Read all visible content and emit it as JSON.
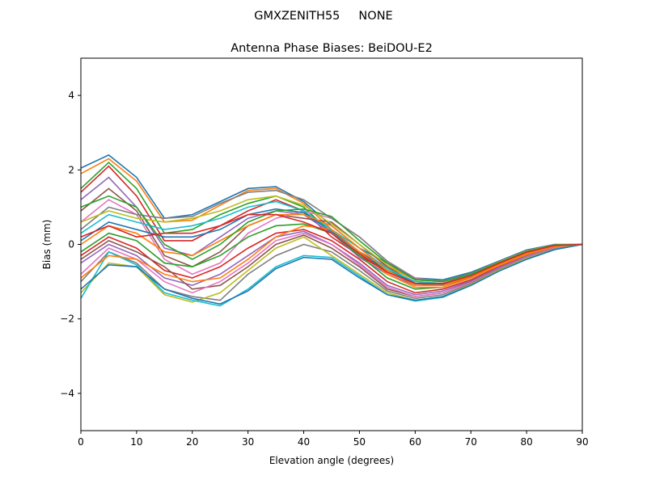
{
  "chart_data": {
    "type": "line",
    "suptitle": "GMXZENITH55     NONE",
    "title": "Antenna Phase Biases: BeiDOU-E2",
    "xlabel": "Elevation angle (degrees)",
    "ylabel": "Bias (mm)",
    "xlim": [
      0,
      90
    ],
    "ylim": [
      -5,
      5
    ],
    "xticks": [
      0,
      10,
      20,
      30,
      40,
      50,
      60,
      70,
      80,
      90
    ],
    "yticks": [
      -4,
      -2,
      0,
      2,
      4
    ],
    "ytick_labels": [
      "−4",
      "−2",
      "0",
      "2",
      "4"
    ],
    "grid": false,
    "colors": [
      "#1f77b4",
      "#ff7f0e",
      "#2ca02c",
      "#d62728",
      "#9467bd",
      "#8c564b",
      "#e377c2",
      "#7f7f7f",
      "#bcbd22",
      "#17becf"
    ],
    "x": [
      0,
      5,
      10,
      15,
      20,
      25,
      30,
      35,
      40,
      45,
      50,
      55,
      60,
      65,
      70,
      75,
      80,
      85,
      90
    ],
    "series": [
      {
        "values": [
          2.05,
          2.4,
          1.8,
          0.7,
          0.8,
          1.15,
          1.5,
          1.55,
          1.15,
          0.5,
          -0.1,
          -0.5,
          -0.9,
          -0.95,
          -0.75,
          -0.45,
          -0.15,
          0,
          0
        ]
      },
      {
        "values": [
          1.9,
          2.3,
          1.7,
          0.6,
          0.65,
          1.05,
          1.45,
          1.5,
          1.1,
          0.4,
          -0.2,
          -0.6,
          -0.95,
          -1.0,
          -0.8,
          -0.48,
          -0.18,
          -0.02,
          0
        ]
      },
      {
        "values": [
          1.5,
          2.2,
          1.5,
          0.3,
          0.4,
          0.8,
          1.1,
          1.3,
          1.0,
          0.3,
          -0.25,
          -0.7,
          -1.0,
          -1.05,
          -0.82,
          -0.5,
          -0.2,
          -0.03,
          0
        ]
      },
      {
        "values": [
          1.4,
          2.1,
          1.3,
          0.1,
          0.1,
          0.5,
          0.9,
          1.2,
          0.9,
          0.2,
          -0.3,
          -0.75,
          -1.05,
          -1.05,
          -0.85,
          -0.52,
          -0.22,
          -0.04,
          0
        ]
      },
      {
        "values": [
          1.2,
          1.8,
          1.0,
          -0.1,
          -0.3,
          0.2,
          0.7,
          0.9,
          0.8,
          0.3,
          -0.35,
          -0.8,
          -1.1,
          -1.1,
          -0.87,
          -0.55,
          -0.25,
          -0.05,
          0
        ]
      },
      {
        "values": [
          0.9,
          1.5,
          0.9,
          -0.3,
          -0.6,
          -0.2,
          0.5,
          0.8,
          0.7,
          0.6,
          0.0,
          -0.6,
          -1.05,
          -1.1,
          -0.88,
          -0.56,
          -0.26,
          -0.06,
          0
        ]
      },
      {
        "values": [
          0.6,
          1.2,
          0.8,
          -0.4,
          -0.8,
          -0.5,
          0.3,
          0.7,
          0.9,
          0.7,
          0.2,
          -0.45,
          -0.9,
          -1.0,
          -0.8,
          -0.5,
          -0.2,
          -0.03,
          0
        ]
      },
      {
        "values": [
          0.4,
          1.0,
          0.8,
          0.7,
          0.75,
          1.1,
          1.4,
          1.45,
          1.2,
          0.7,
          0.2,
          -0.45,
          -0.92,
          -0.98,
          -0.78,
          -0.47,
          -0.17,
          -0.01,
          0
        ]
      },
      {
        "values": [
          0.6,
          0.9,
          0.7,
          0.6,
          0.7,
          0.9,
          1.2,
          1.3,
          1.05,
          0.55,
          0.0,
          -0.55,
          -0.95,
          -1.0,
          -0.8,
          -0.48,
          -0.18,
          -0.02,
          0
        ]
      },
      {
        "values": [
          0.3,
          0.8,
          0.6,
          0.4,
          0.5,
          0.7,
          1.0,
          1.15,
          0.9,
          0.4,
          -0.1,
          -0.65,
          -1.0,
          -1.05,
          -0.83,
          -0.5,
          -0.2,
          -0.03,
          0
        ]
      },
      {
        "values": [
          0.1,
          0.6,
          0.4,
          0.2,
          0.2,
          0.4,
          0.8,
          0.95,
          0.85,
          0.35,
          -0.2,
          -0.7,
          -1.05,
          -1.07,
          -0.85,
          -0.52,
          -0.22,
          -0.04,
          0
        ]
      },
      {
        "values": [
          0.0,
          0.5,
          0.3,
          -0.2,
          -0.3,
          0.1,
          0.5,
          0.8,
          0.8,
          0.5,
          -0.1,
          -0.7,
          -1.1,
          -1.1,
          -0.86,
          -0.54,
          -0.24,
          -0.05,
          0
        ]
      },
      {
        "values": [
          -0.2,
          0.3,
          0.1,
          -0.5,
          -0.6,
          -0.3,
          0.2,
          0.5,
          0.55,
          0.3,
          -0.3,
          -0.9,
          -1.2,
          -1.15,
          -0.9,
          -0.57,
          -0.27,
          -0.07,
          0
        ]
      },
      {
        "values": [
          -0.3,
          0.2,
          -0.1,
          -0.7,
          -0.9,
          -0.6,
          -0.1,
          0.3,
          0.4,
          0.1,
          -0.4,
          -1.0,
          -1.3,
          -1.2,
          -0.95,
          -0.6,
          -0.3,
          -0.08,
          0
        ]
      },
      {
        "values": [
          -0.5,
          0.0,
          -0.3,
          -0.9,
          -1.1,
          -0.8,
          -0.3,
          0.2,
          0.35,
          0.0,
          -0.5,
          -1.1,
          -1.35,
          -1.25,
          -0.98,
          -0.62,
          -0.31,
          -0.09,
          0
        ]
      },
      {
        "values": [
          -0.4,
          0.1,
          -0.2,
          -0.6,
          -1.2,
          -1.1,
          -0.6,
          0.0,
          0.25,
          -0.1,
          -0.6,
          -1.2,
          -1.4,
          -1.3,
          -1.0,
          -0.65,
          -0.33,
          -0.1,
          0
        ]
      },
      {
        "values": [
          -0.8,
          -0.1,
          -0.4,
          -1.0,
          -1.3,
          -1.0,
          -0.5,
          0.1,
          0.3,
          0.0,
          -0.55,
          -1.15,
          -1.4,
          -1.3,
          -1.02,
          -0.66,
          -0.34,
          -0.1,
          0
        ]
      },
      {
        "values": [
          -1.0,
          -0.2,
          -0.5,
          -1.2,
          -1.4,
          -1.5,
          -0.8,
          -0.3,
          0.0,
          -0.2,
          -0.7,
          -1.25,
          -1.45,
          -1.35,
          -1.05,
          -0.68,
          -0.36,
          -0.12,
          0
        ]
      },
      {
        "values": [
          -1.3,
          -0.5,
          -0.6,
          -1.35,
          -1.55,
          -1.3,
          -0.7,
          -0.1,
          0.2,
          -0.3,
          -0.8,
          -1.3,
          -1.5,
          -1.4,
          -1.08,
          -0.7,
          -0.38,
          -0.13,
          0
        ]
      },
      {
        "values": [
          -1.45,
          -0.2,
          -0.55,
          -1.3,
          -1.5,
          -1.65,
          -1.2,
          -0.6,
          -0.3,
          -0.35,
          -0.85,
          -1.35,
          -1.52,
          -1.42,
          -1.1,
          -0.72,
          -0.4,
          -0.14,
          0
        ]
      },
      {
        "values": [
          -1.2,
          -0.55,
          -0.6,
          -1.2,
          -1.45,
          -1.6,
          -1.25,
          -0.65,
          -0.35,
          -0.4,
          -0.9,
          -1.35,
          -1.5,
          -1.4,
          -1.1,
          -0.72,
          -0.4,
          -0.14,
          0
        ]
      },
      {
        "values": [
          -0.9,
          -0.3,
          -0.4,
          -0.8,
          -1.0,
          -0.9,
          -0.4,
          0.2,
          0.5,
          0.4,
          -0.2,
          -0.8,
          -1.15,
          -1.15,
          -0.9,
          -0.57,
          -0.27,
          -0.06,
          0
        ]
      },
      {
        "values": [
          1.0,
          1.3,
          1.0,
          0.0,
          -0.4,
          0.0,
          0.6,
          0.9,
          0.95,
          0.75,
          0.1,
          -0.5,
          -0.95,
          -1.0,
          -0.8,
          -0.49,
          -0.19,
          -0.02,
          0
        ]
      },
      {
        "values": [
          0.2,
          0.5,
          0.2,
          0.3,
          0.3,
          0.5,
          0.8,
          0.8,
          0.6,
          0.3,
          -0.25,
          -0.75,
          -1.05,
          -1.05,
          -0.84,
          -0.51,
          -0.21,
          -0.03,
          0
        ]
      }
    ]
  }
}
